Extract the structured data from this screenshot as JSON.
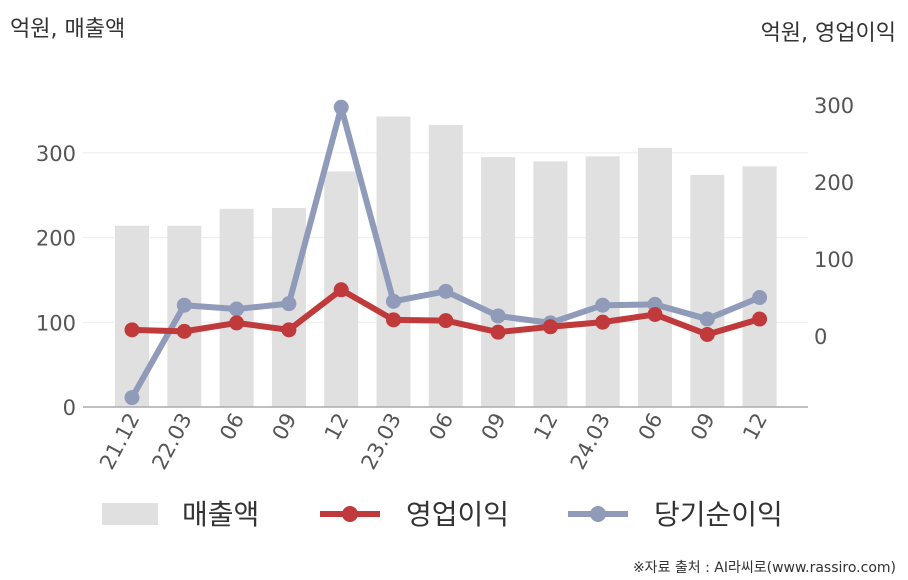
{
  "chart_data": {
    "type": "bar",
    "left_unit": "억원, 매출액",
    "right_unit": "억원, 영업이익",
    "categories": [
      "21.12",
      "22.03",
      "06",
      "09",
      "12",
      "23.03",
      "06",
      "09",
      "12",
      "24.03",
      "06",
      "09",
      "12"
    ],
    "left_axis": {
      "ylim": [
        0,
        360
      ],
      "ticks": [
        "0",
        "100",
        "200",
        "300"
      ]
    },
    "right_axis": {
      "ylim": [
        -80,
        360
      ],
      "ticks": [
        "0",
        "100",
        "200",
        "300"
      ]
    },
    "series": [
      {
        "name": "매출액",
        "type": "bar",
        "axis": "left",
        "color": "#e0e0e0",
        "values": [
          214,
          214,
          234,
          235,
          278,
          343,
          333,
          295,
          290,
          296,
          306,
          274,
          284
        ]
      },
      {
        "name": "영업이익",
        "type": "line",
        "axis": "right",
        "color": "#c0393b",
        "values": [
          8,
          6,
          17,
          8,
          60,
          21,
          20,
          5,
          12,
          18,
          28,
          2,
          22
        ]
      },
      {
        "name": "당기순이익",
        "type": "line",
        "axis": "right",
        "color": "#8f9bb8",
        "values": [
          -80,
          40,
          35,
          42,
          297,
          45,
          58,
          26,
          17,
          40,
          41,
          22,
          50
        ]
      }
    ],
    "grid": true,
    "legend": "bottom"
  },
  "source": "※자료 출처 : AI라씨로(www.rassiro.com)"
}
